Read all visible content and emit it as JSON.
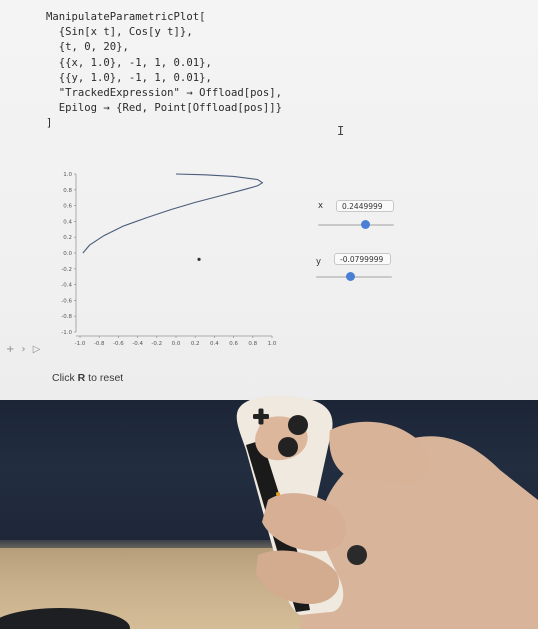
{
  "code": {
    "lines": [
      "ManipulateParametricPlot[",
      "  {Sin[x t], Cos[y t]},",
      "  {t, 0, 20},",
      "  {{x, 1.0}, -1, 1, 0.01},",
      "  {{y, 1.0}, -1, 1, 0.01},",
      "  \"TrackedExpression\" → Offload[pos],",
      "  Epilog → {Red, Point[Offload[pos]]}",
      "]"
    ]
  },
  "cursor_glyph": "I",
  "controls": {
    "x": {
      "label": "x",
      "value": "0.2449999",
      "fraction": 0.62
    },
    "y": {
      "label": "y",
      "value": "-0.0799999",
      "fraction": 0.46
    }
  },
  "cell_tools": "+ › ▷",
  "hint": {
    "prefix": "Click ",
    "key": "R",
    "suffix": " to reset"
  },
  "chart_data": {
    "type": "line",
    "xlim": [
      -1.0,
      1.0
    ],
    "ylim": [
      -1.0,
      1.0
    ],
    "x_ticks": [
      "-1.0",
      "-0.8",
      "-0.6",
      "-0.4",
      "-0.2",
      "0.0",
      "0.2",
      "0.4",
      "0.6",
      "0.8",
      "1.0"
    ],
    "y_ticks": [
      "1.0",
      "0.8",
      "0.6",
      "0.4",
      "0.2",
      "0.0",
      "-0.2",
      "-0.4",
      "-0.6",
      "-0.8",
      "-1.0"
    ],
    "series": [
      {
        "x": [
          -0.97,
          -0.9,
          -0.75,
          -0.55,
          -0.3,
          -0.05,
          0.2,
          0.45,
          0.7,
          0.85,
          0.9,
          0.85,
          0.6,
          0.3,
          0.0
        ],
        "y": [
          0.0,
          0.1,
          0.22,
          0.34,
          0.45,
          0.55,
          0.64,
          0.72,
          0.8,
          0.85,
          0.89,
          0.93,
          0.97,
          0.99,
          1.0
        ]
      }
    ],
    "points": [
      {
        "x": 0.24,
        "y": -0.08
      }
    ],
    "colors": {
      "curve": "#4a5c7a",
      "point": "#333333",
      "slider": "#4a7fd6"
    }
  }
}
